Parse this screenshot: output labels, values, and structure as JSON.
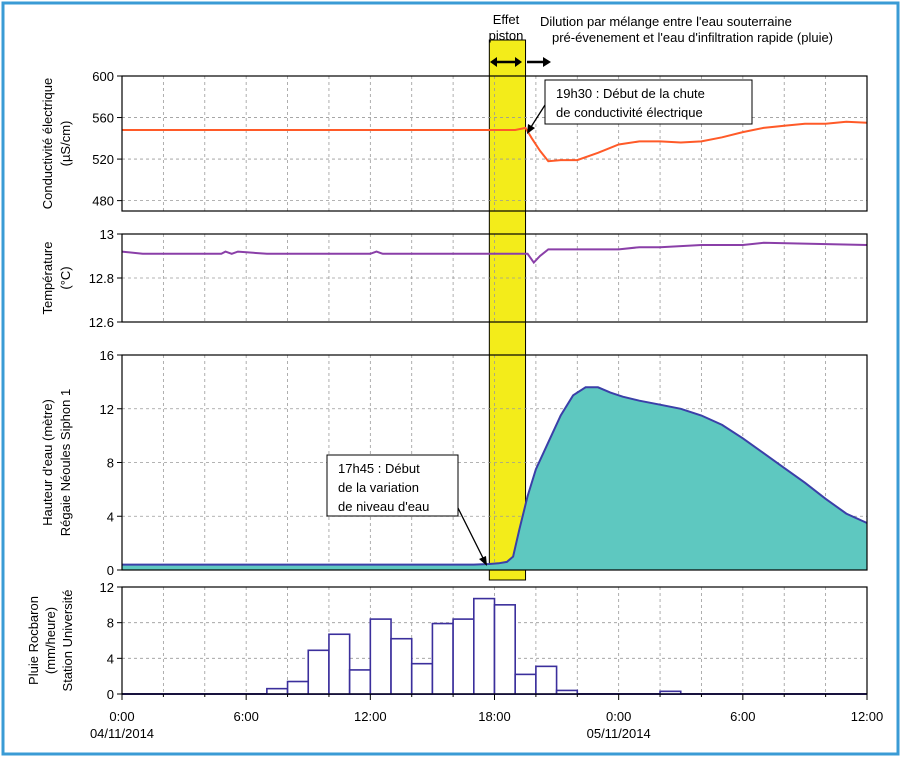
{
  "colors": {
    "frame": "#3a9bd5",
    "conductivity": "#ff5a28",
    "temperature": "#8a3fa8",
    "water_line": "#3b3fa8",
    "water_fill": "#5ec8c0",
    "rain_bar": "#3b2f9c",
    "piston_band": "#f3ec1a",
    "grid": "#9a9a9a"
  },
  "annotations": {
    "effet": "Effet",
    "piston": "piston",
    "dilution_line1": "Dilution par mélange entre l'eau souterraine",
    "dilution_line2": "pré-évenement et l'eau d'infiltration rapide (pluie)",
    "ce_line1": "19h30 : Début de la chute",
    "ce_line2": "de conductivité électrique",
    "level_line1": "17h45 : Début",
    "level_line2": "de la variation",
    "level_line3": "de niveau d'eau"
  },
  "x_tick_labels": [
    "0:00",
    "6:00",
    "12:00",
    "18:00",
    "0:00",
    "6:00",
    "12:00"
  ],
  "x_date_labels": [
    "04/11/2014",
    "05/11/2014"
  ],
  "chart_data": [
    {
      "type": "line",
      "ylabel": [
        "Conductivité électrique",
        "(µS/cm)"
      ],
      "yticks": [
        480,
        520,
        560,
        600
      ],
      "ylim": [
        470,
        600
      ],
      "x_unit": "hours since 04/11/2014 0:00",
      "xlim": [
        0,
        36
      ],
      "grid": true,
      "series": [
        {
          "points": [
            [
              0,
              548
            ],
            [
              18.2,
              548
            ],
            [
              19.0,
              548
            ],
            [
              19.5,
              550
            ],
            [
              19.8,
              540
            ],
            [
              20.2,
              528
            ],
            [
              20.6,
              518
            ],
            [
              21.2,
              519
            ],
            [
              22.0,
              519
            ],
            [
              23.0,
              526
            ],
            [
              24.0,
              534
            ],
            [
              25.0,
              537
            ],
            [
              26.0,
              537
            ],
            [
              27.0,
              536
            ],
            [
              28.0,
              537
            ],
            [
              29.0,
              541
            ],
            [
              30.0,
              546
            ],
            [
              31.0,
              550
            ],
            [
              32.0,
              552
            ],
            [
              33.0,
              554
            ],
            [
              34.0,
              554
            ],
            [
              35.0,
              556
            ],
            [
              36.0,
              555
            ]
          ]
        }
      ]
    },
    {
      "type": "line",
      "ylabel": [
        "Température",
        "(°C)"
      ],
      "yticks": [
        12.6,
        12.8,
        13
      ],
      "ylim": [
        12.6,
        13.0
      ],
      "x_unit": "hours since 04/11/2014 0:00",
      "xlim": [
        0,
        36
      ],
      "grid": true,
      "series": [
        {
          "points": [
            [
              0,
              12.92
            ],
            [
              1.0,
              12.91
            ],
            [
              4.8,
              12.91
            ],
            [
              5.0,
              12.92
            ],
            [
              5.3,
              12.91
            ],
            [
              5.6,
              12.92
            ],
            [
              7.0,
              12.91
            ],
            [
              12.0,
              12.91
            ],
            [
              12.3,
              12.92
            ],
            [
              12.6,
              12.91
            ],
            [
              18.0,
              12.91
            ],
            [
              19.6,
              12.91
            ],
            [
              19.9,
              12.87
            ],
            [
              20.2,
              12.9
            ],
            [
              20.6,
              12.93
            ],
            [
              21.0,
              12.93
            ],
            [
              23.0,
              12.93
            ],
            [
              24.0,
              12.93
            ],
            [
              25.0,
              12.94
            ],
            [
              26.0,
              12.94
            ],
            [
              28.0,
              12.95
            ],
            [
              30.0,
              12.95
            ],
            [
              31.0,
              12.96
            ],
            [
              36.0,
              12.95
            ]
          ]
        }
      ]
    },
    {
      "type": "area",
      "ylabel": [
        "Hauteur d'eau (mètre)",
        "Régaie Néoules Siphon 1"
      ],
      "yticks": [
        0,
        4,
        8,
        12,
        16
      ],
      "ylim": [
        0,
        16
      ],
      "x_unit": "hours since 04/11/2014 0:00",
      "xlim": [
        0,
        36
      ],
      "grid": true,
      "series": [
        {
          "points": [
            [
              0,
              0.4
            ],
            [
              10,
              0.4
            ],
            [
              17.0,
              0.4
            ],
            [
              17.75,
              0.45
            ],
            [
              18.2,
              0.5
            ],
            [
              18.6,
              0.6
            ],
            [
              18.9,
              1.0
            ],
            [
              19.2,
              3.0
            ],
            [
              19.6,
              5.5
            ],
            [
              20.0,
              7.5
            ],
            [
              20.6,
              9.5
            ],
            [
              21.2,
              11.5
            ],
            [
              21.8,
              13.0
            ],
            [
              22.4,
              13.6
            ],
            [
              23.0,
              13.6
            ],
            [
              23.6,
              13.2
            ],
            [
              24.2,
              12.9
            ],
            [
              25.0,
              12.6
            ],
            [
              26.0,
              12.3
            ],
            [
              27.0,
              12.0
            ],
            [
              28.0,
              11.5
            ],
            [
              29.0,
              10.8
            ],
            [
              30.0,
              9.8
            ],
            [
              31.0,
              8.7
            ],
            [
              32.0,
              7.6
            ],
            [
              33.0,
              6.5
            ],
            [
              34.0,
              5.3
            ],
            [
              35.0,
              4.2
            ],
            [
              36.0,
              3.5
            ]
          ]
        }
      ]
    },
    {
      "type": "bar",
      "ylabel": [
        "Pluie Rocbaron",
        "(mm/heure)",
        "Station Université"
      ],
      "yticks": [
        0,
        4,
        8,
        12
      ],
      "ylim": [
        0,
        12
      ],
      "x_unit": "hours since 04/11/2014 0:00",
      "xlim": [
        0,
        36
      ],
      "grid": true,
      "bar_width_hours": 1,
      "bars": [
        {
          "start": 7,
          "value": 0.6
        },
        {
          "start": 8,
          "value": 1.4
        },
        {
          "start": 9,
          "value": 4.9
        },
        {
          "start": 10,
          "value": 6.7
        },
        {
          "start": 11,
          "value": 2.7
        },
        {
          "start": 12,
          "value": 8.4
        },
        {
          "start": 13,
          "value": 6.2
        },
        {
          "start": 14,
          "value": 3.4
        },
        {
          "start": 15,
          "value": 7.9
        },
        {
          "start": 16,
          "value": 8.4
        },
        {
          "start": 17,
          "value": 10.7
        },
        {
          "start": 18,
          "value": 10.0
        },
        {
          "start": 19,
          "value": 2.2
        },
        {
          "start": 20,
          "value": 3.1
        },
        {
          "start": 21,
          "value": 0.4
        },
        {
          "start": 26,
          "value": 0.3
        }
      ]
    }
  ],
  "piston_hours": [
    17.75,
    19.5
  ]
}
